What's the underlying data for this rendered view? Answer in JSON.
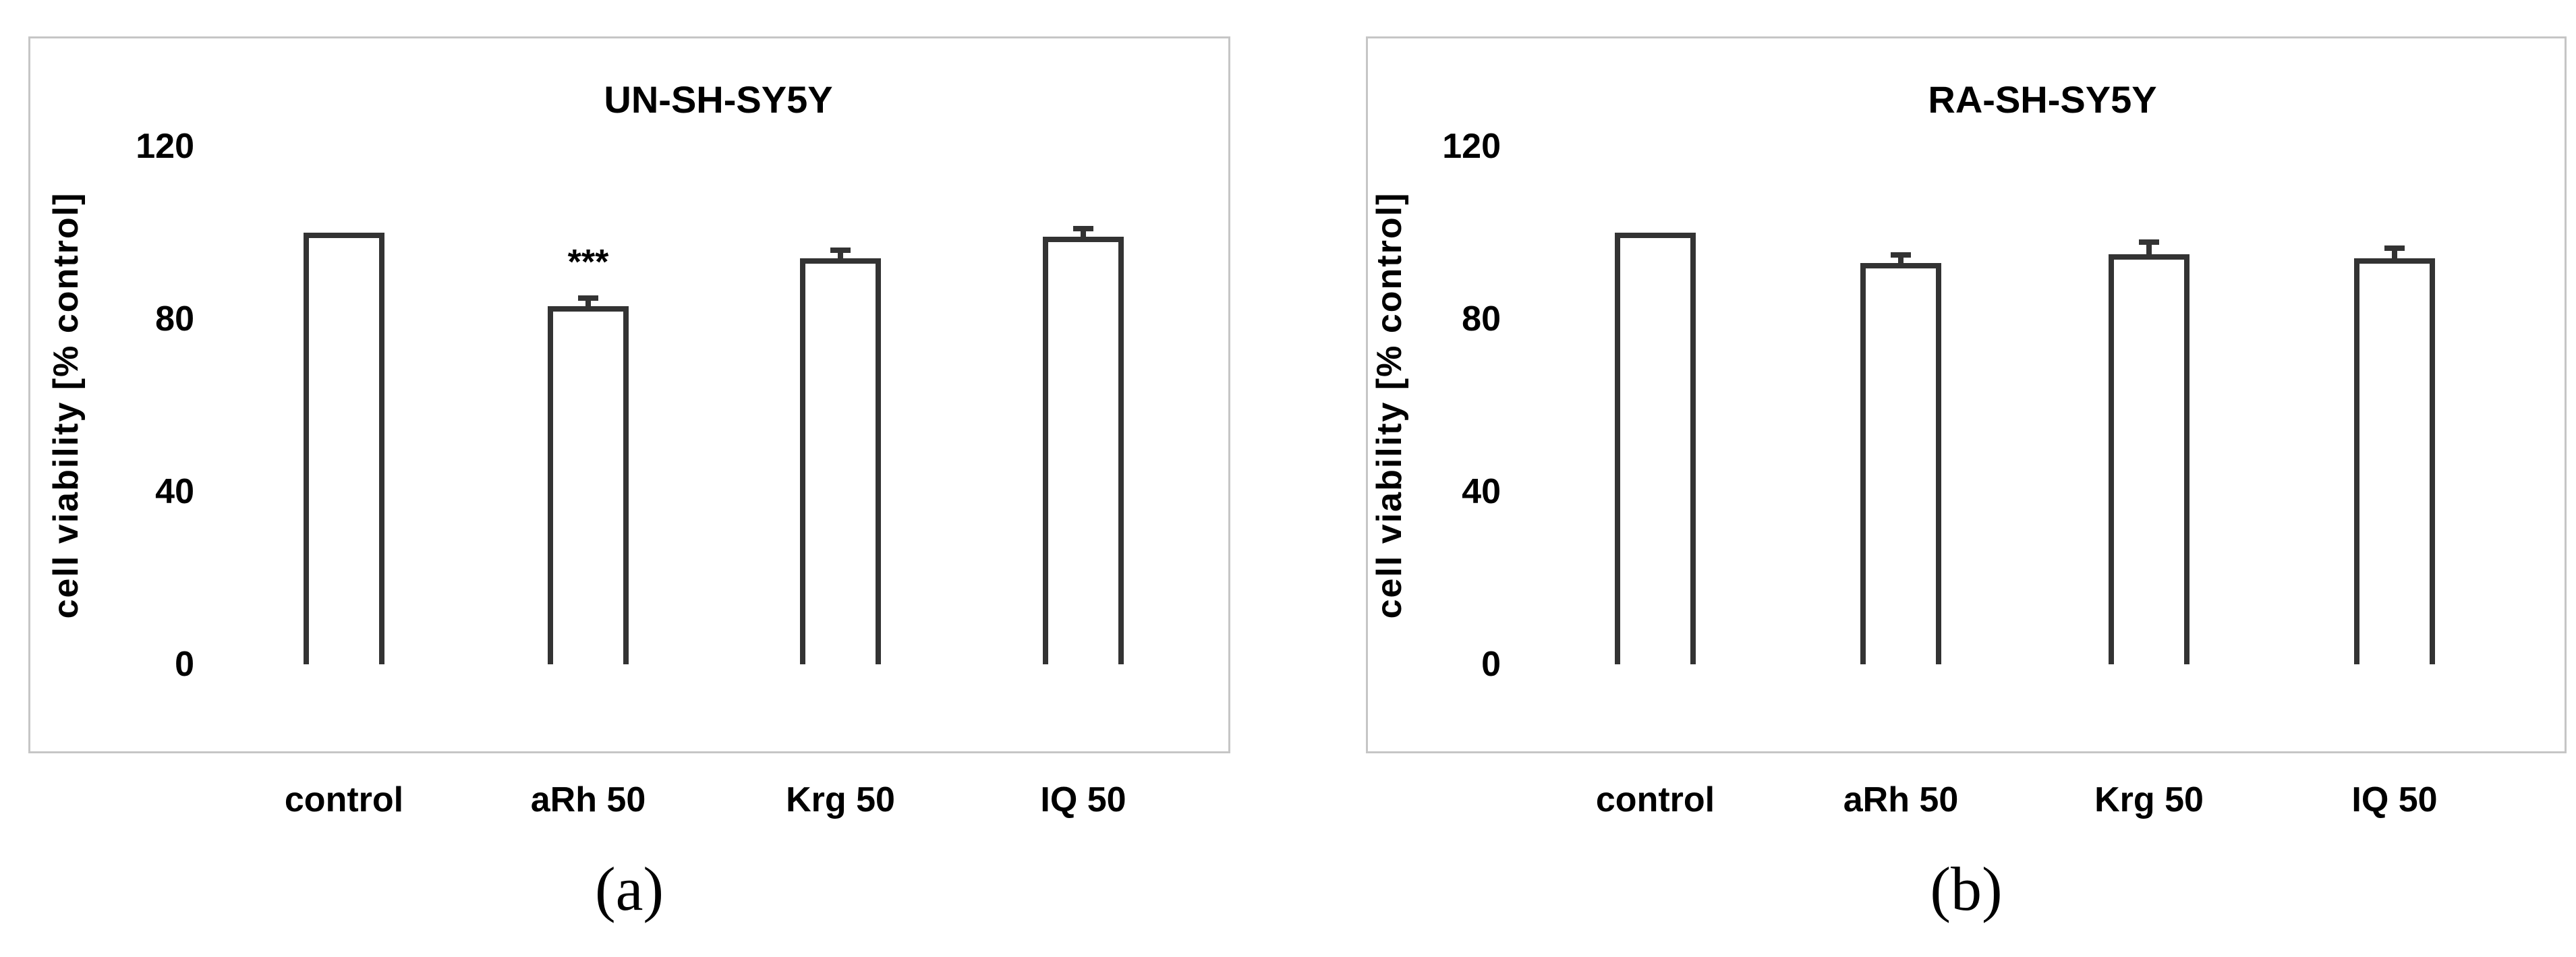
{
  "figure": {
    "background": "#ffffff",
    "panel_border_color": "#c6c6c6",
    "axis_color": "#000000",
    "bar_border_color": "#333333",
    "bar_fill_color": "#ffffff",
    "error_bar_color": "#333333",
    "text_color": "#000000"
  },
  "chart_data": [
    {
      "type": "bar",
      "panel": "a",
      "caption": "(a)",
      "title": "UN-SH-SY5Y",
      "xlabel": "",
      "ylabel": "cell viability [% control]",
      "ylim": [
        0,
        120
      ],
      "yticks": [
        120,
        80,
        40,
        0
      ],
      "grid": false,
      "legend": false,
      "categories": [
        "control",
        "aRh 50",
        "Krg 50",
        "IQ 50"
      ],
      "values": [
        100,
        83,
        94,
        99
      ],
      "errors_plus": [
        0,
        2.5,
        2.5,
        2.5
      ],
      "significance": [
        "",
        "***",
        "",
        ""
      ]
    },
    {
      "type": "bar",
      "panel": "b",
      "caption": "(b)",
      "title": "RA-SH-SY5Y",
      "xlabel": "",
      "ylabel": "cell viability [% control]",
      "ylim": [
        0,
        120
      ],
      "yticks": [
        120,
        80,
        40,
        0
      ],
      "grid": false,
      "legend": false,
      "categories": [
        "control",
        "aRh 50",
        "Krg 50",
        "IQ 50"
      ],
      "values": [
        100,
        93,
        95,
        94
      ],
      "errors_plus": [
        0,
        2.5,
        3.5,
        3
      ],
      "significance": [
        "",
        "",
        "",
        ""
      ]
    }
  ]
}
